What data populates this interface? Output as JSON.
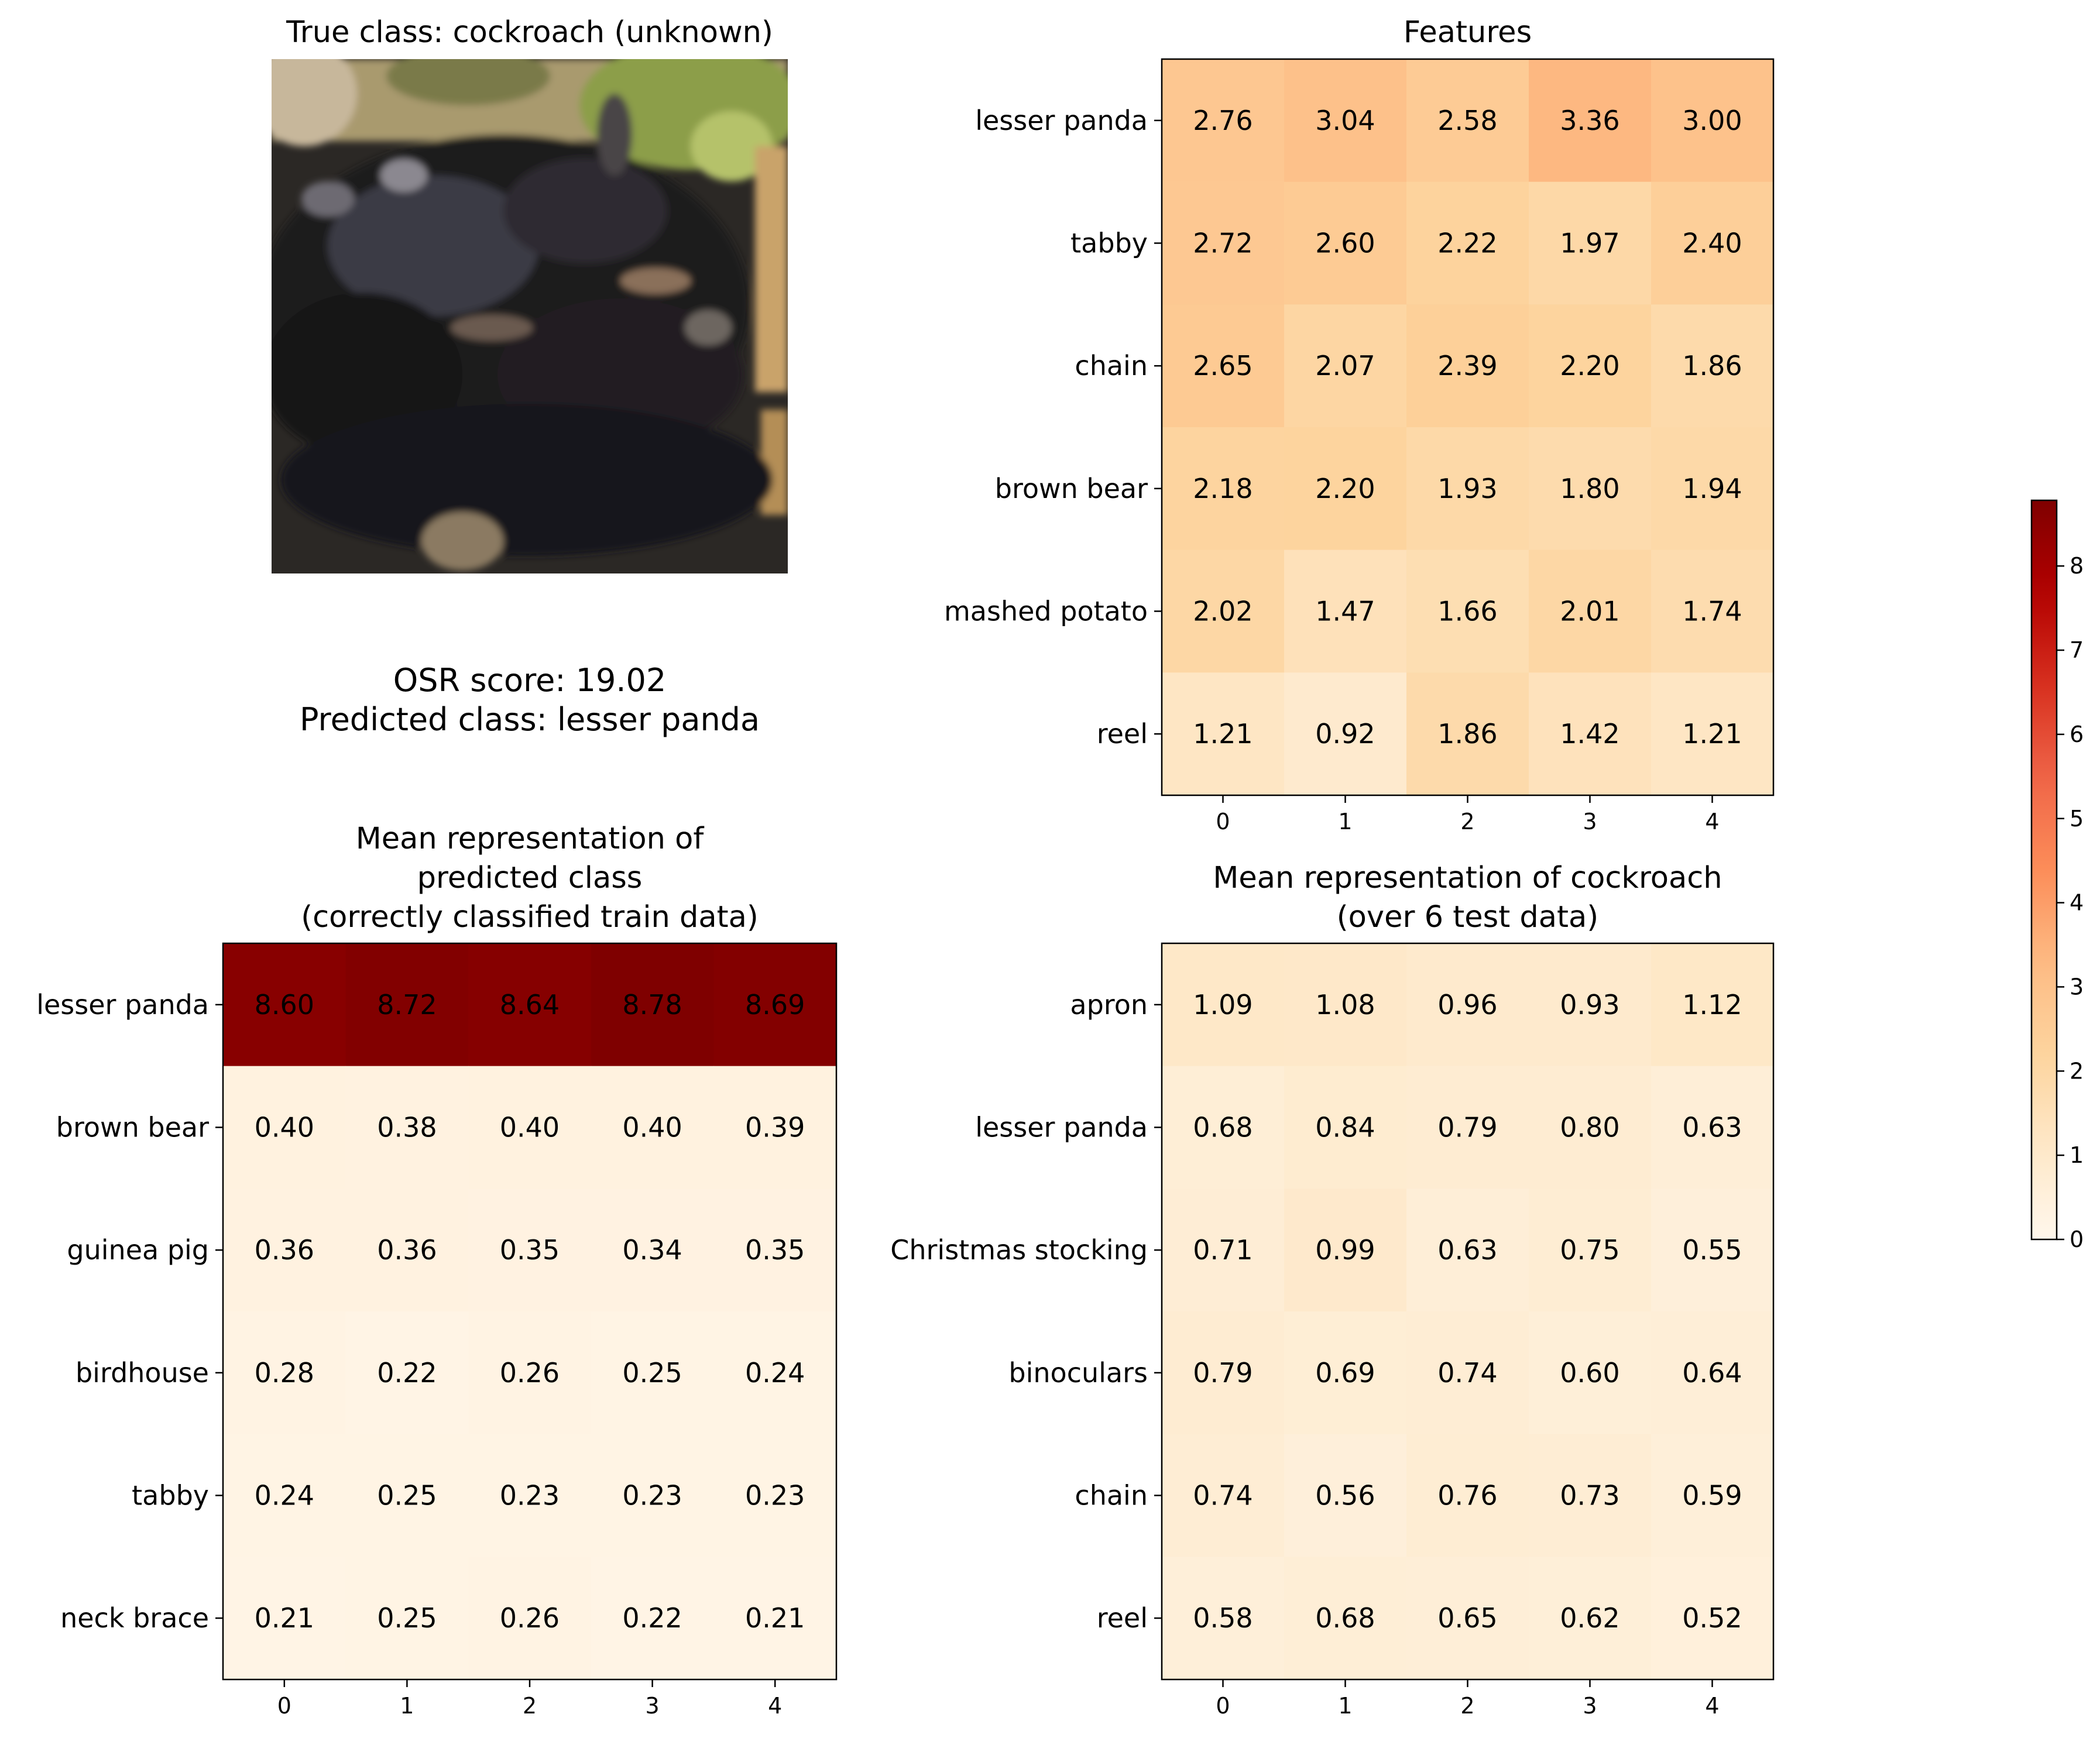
{
  "photo": {
    "title": "True class: cockroach (unknown)",
    "depicts": "thumbnail of a cockroach"
  },
  "info": {
    "osr_line": "OSR score: 19.02",
    "pred_line": "Predicted class: lesser panda"
  },
  "colorbar": {
    "ticks": [
      "0",
      "1",
      "2",
      "3",
      "4",
      "5",
      "6",
      "7",
      "8"
    ],
    "min": 0,
    "max": 8.78,
    "colormap": "OrRd"
  },
  "chart_data": [
    {
      "type": "heatmap",
      "title": [
        "Features"
      ],
      "rows": [
        "lesser panda",
        "tabby",
        "chain",
        "brown bear",
        "mashed potato",
        "reel"
      ],
      "columns": [
        "0",
        "1",
        "2",
        "3",
        "4"
      ],
      "values": [
        [
          2.76,
          3.04,
          2.58,
          3.36,
          3.0
        ],
        [
          2.72,
          2.6,
          2.22,
          1.97,
          2.4
        ],
        [
          2.65,
          2.07,
          2.39,
          2.2,
          1.86
        ],
        [
          2.18,
          2.2,
          1.93,
          1.8,
          1.94
        ],
        [
          2.02,
          1.47,
          1.66,
          2.01,
          1.74
        ],
        [
          1.21,
          0.92,
          1.86,
          1.42,
          1.21
        ]
      ],
      "labels": [
        [
          "2.76",
          "3.04",
          "2.58",
          "3.36",
          "3.00"
        ],
        [
          "2.72",
          "2.60",
          "2.22",
          "1.97",
          "2.40"
        ],
        [
          "2.65",
          "2.07",
          "2.39",
          "2.20",
          "1.86"
        ],
        [
          "2.18",
          "2.20",
          "1.93",
          "1.80",
          "1.94"
        ],
        [
          "2.02",
          "1.47",
          "1.66",
          "2.01",
          "1.74"
        ],
        [
          "1.21",
          "0.92",
          "1.86",
          "1.42",
          "1.21"
        ]
      ]
    },
    {
      "type": "heatmap",
      "title": [
        "Mean representation of",
        "predicted class",
        "(correctly classified train data)"
      ],
      "rows": [
        "lesser panda",
        "brown bear",
        "guinea pig",
        "birdhouse",
        "tabby",
        "neck brace"
      ],
      "columns": [
        "0",
        "1",
        "2",
        "3",
        "4"
      ],
      "values": [
        [
          8.6,
          8.72,
          8.64,
          8.78,
          8.69
        ],
        [
          0.4,
          0.38,
          0.4,
          0.4,
          0.39
        ],
        [
          0.36,
          0.36,
          0.35,
          0.34,
          0.35
        ],
        [
          0.28,
          0.22,
          0.26,
          0.25,
          0.24
        ],
        [
          0.24,
          0.25,
          0.23,
          0.23,
          0.23
        ],
        [
          0.21,
          0.25,
          0.26,
          0.22,
          0.21
        ]
      ],
      "labels": [
        [
          "8.60",
          "8.72",
          "8.64",
          "8.78",
          "8.69"
        ],
        [
          "0.40",
          "0.38",
          "0.40",
          "0.40",
          "0.39"
        ],
        [
          "0.36",
          "0.36",
          "0.35",
          "0.34",
          "0.35"
        ],
        [
          "0.28",
          "0.22",
          "0.26",
          "0.25",
          "0.24"
        ],
        [
          "0.24",
          "0.25",
          "0.23",
          "0.23",
          "0.23"
        ],
        [
          "0.21",
          "0.25",
          "0.26",
          "0.22",
          "0.21"
        ]
      ]
    },
    {
      "type": "heatmap",
      "title": [
        "Mean representation of cockroach",
        "(over 6 test data)"
      ],
      "rows": [
        "apron",
        "lesser panda",
        "Christmas stocking",
        "binoculars",
        "chain",
        "reel"
      ],
      "columns": [
        "0",
        "1",
        "2",
        "3",
        "4"
      ],
      "values": [
        [
          1.09,
          1.08,
          0.96,
          0.93,
          1.12
        ],
        [
          0.68,
          0.84,
          0.79,
          0.8,
          0.63
        ],
        [
          0.71,
          0.99,
          0.63,
          0.75,
          0.55
        ],
        [
          0.79,
          0.69,
          0.74,
          0.6,
          0.64
        ],
        [
          0.74,
          0.56,
          0.76,
          0.73,
          0.59
        ],
        [
          0.58,
          0.68,
          0.65,
          0.62,
          0.52
        ]
      ],
      "labels": [
        [
          "1.09",
          "1.08",
          "0.96",
          "0.93",
          "1.12"
        ],
        [
          "0.68",
          "0.84",
          "0.79",
          "0.80",
          "0.63"
        ],
        [
          "0.71",
          "0.99",
          "0.63",
          "0.75",
          "0.55"
        ],
        [
          "0.79",
          "0.69",
          "0.74",
          "0.60",
          "0.64"
        ],
        [
          "0.74",
          "0.56",
          "0.76",
          "0.73",
          "0.59"
        ],
        [
          "0.58",
          "0.68",
          "0.65",
          "0.62",
          "0.52"
        ]
      ]
    }
  ]
}
